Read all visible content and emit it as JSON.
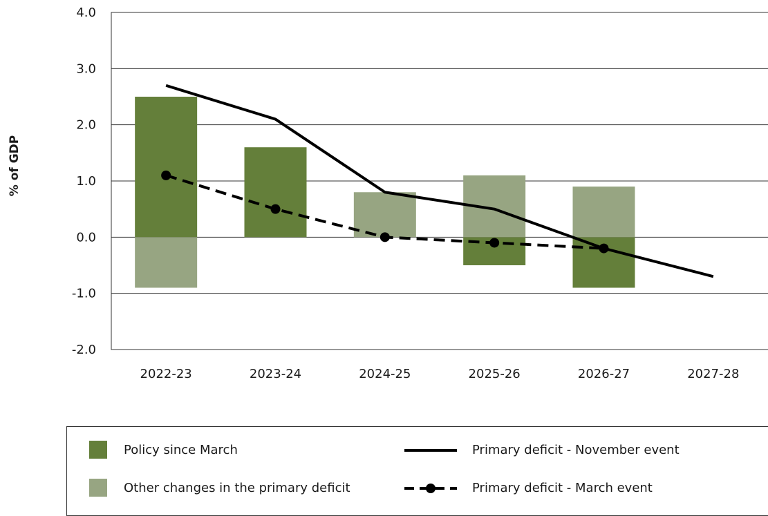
{
  "chart_data": {
    "type": "bar",
    "ylabel": "% of GDP",
    "ylim": [
      -2.0,
      4.0
    ],
    "yticks": [
      "4.0",
      "3.0",
      "2.0",
      "1.0",
      "0.0",
      "-1.0",
      "-2.0"
    ],
    "ytick_values": [
      4,
      3,
      2,
      1,
      0,
      -1,
      -2
    ],
    "categories": [
      "2022-23",
      "2023-24",
      "2024-25",
      "2025-26",
      "2026-27",
      "2027-28"
    ],
    "grid": true,
    "bar_series": [
      {
        "name": "Policy since March",
        "color": "#647f3a",
        "values": [
          2.5,
          1.6,
          0.0,
          -0.5,
          -0.9,
          null
        ]
      },
      {
        "name": "Other changes in the primary deficit",
        "color": "#97a582",
        "values": [
          -0.9,
          0.0,
          0.8,
          1.1,
          0.9,
          null
        ]
      }
    ],
    "line_series": [
      {
        "name": "Primary deficit - November event",
        "style": "solid",
        "color": "#000000",
        "values": [
          2.7,
          2.1,
          0.8,
          0.5,
          -0.2,
          -0.7
        ]
      },
      {
        "name": "Primary deficit  - March event",
        "style": "dashed-markers",
        "color": "#000000",
        "values": [
          1.1,
          0.5,
          0.0,
          -0.1,
          -0.2,
          null
        ]
      }
    ],
    "legend": {
      "position": "bottom",
      "items": [
        "Policy since March",
        "Other changes in the primary deficit",
        "Primary deficit - November event",
        "Primary deficit  - March event"
      ]
    }
  }
}
